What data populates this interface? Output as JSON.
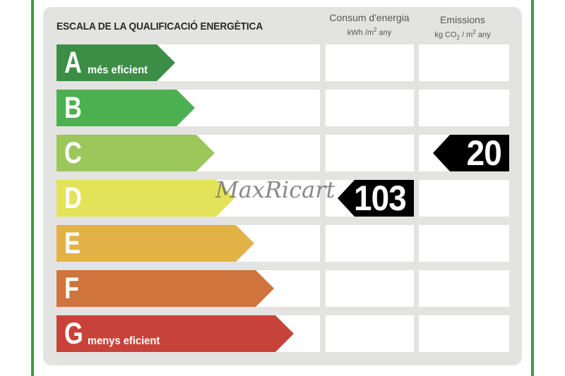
{
  "title": "ESCALA DE LA QUALIFICACIÓ ENERGÈTICA",
  "columns": {
    "consum": {
      "label": "Consum d'energia",
      "unit_prefix": "kWh /m",
      "unit_sup": "2",
      "unit_suffix": " any"
    },
    "emissions": {
      "label": "Emissions",
      "unit_prefix": "kg CO",
      "unit_sub": "2",
      "unit_mid": " / m",
      "unit_sup": "2",
      "unit_suffix": " any"
    }
  },
  "bands": [
    {
      "letter": "A",
      "note": "més eficient",
      "color": "#3c8e47"
    },
    {
      "letter": "B",
      "note": "",
      "color": "#4caf50"
    },
    {
      "letter": "C",
      "note": "",
      "color": "#9bc75b"
    },
    {
      "letter": "D",
      "note": "",
      "color": "#e3e35a"
    },
    {
      "letter": "E",
      "note": "",
      "color": "#e2b247"
    },
    {
      "letter": "F",
      "note": "",
      "color": "#cf743c"
    },
    {
      "letter": "G",
      "note": "menys eficient",
      "color": "#c7433a"
    }
  ],
  "consumption": {
    "value": "103",
    "band": "D"
  },
  "emissions": {
    "value": "20",
    "band": "C"
  },
  "watermark": "MaxRicart"
}
